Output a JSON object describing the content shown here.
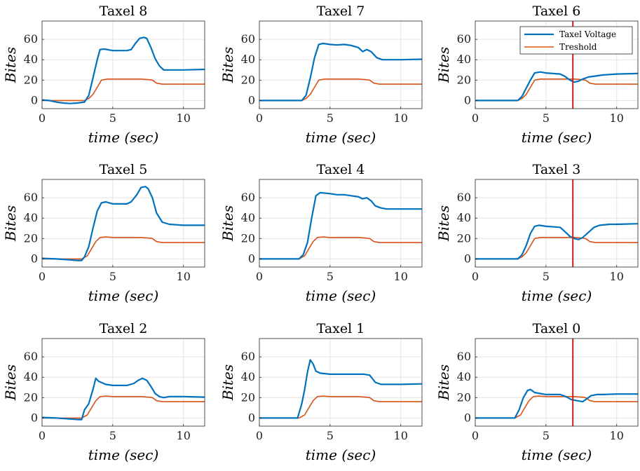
{
  "figure": {
    "legend": {
      "voltage_label": "Taxel Voltage",
      "threshold_label": "Treshold"
    }
  },
  "chart_data": [
    {
      "type": "line",
      "title": "Taxel 8",
      "xlabel": "time (sec)",
      "ylabel": "Bites",
      "xlim": [
        0,
        11.5
      ],
      "ylim": [
        -8,
        78
      ],
      "xticks": [
        0,
        5,
        10
      ],
      "yticks": [
        0,
        20,
        40,
        60
      ],
      "grid": true,
      "series": [
        {
          "name": "Taxel Voltage",
          "color": "#0072BD",
          "x": [
            0,
            0.5,
            1,
            1.5,
            2,
            2.5,
            3,
            3.3,
            3.6,
            3.9,
            4.1,
            4.4,
            5,
            5.5,
            6,
            6.3,
            6.6,
            6.9,
            7.2,
            7.4,
            7.7,
            8,
            8.3,
            8.6,
            9,
            10,
            11.5
          ],
          "y": [
            0.5,
            0,
            -1.5,
            -2.5,
            -3,
            -2.5,
            -1.5,
            5,
            22,
            40,
            50,
            50.5,
            49,
            49,
            49,
            50,
            56,
            61,
            62,
            61,
            52,
            41,
            34,
            30,
            30,
            30,
            30.5
          ]
        },
        {
          "name": "Treshold",
          "color": "#D95319",
          "x": [
            0,
            1,
            2,
            3,
            3.3,
            3.6,
            3.9,
            4.2,
            4.6,
            5,
            6,
            7,
            7.5,
            7.8,
            8.1,
            8.5,
            9,
            10,
            11.5
          ],
          "y": [
            0,
            0,
            0,
            0,
            2,
            6,
            13,
            20,
            21,
            21,
            21,
            21,
            20.5,
            20,
            17,
            16,
            16,
            16,
            16
          ]
        }
      ]
    },
    {
      "type": "line",
      "title": "Taxel 7",
      "xlabel": "time (sec)",
      "ylabel": "Bites",
      "xlim": [
        0,
        11.5
      ],
      "ylim": [
        -8,
        78
      ],
      "xticks": [
        0,
        5,
        10
      ],
      "yticks": [
        0,
        20,
        40,
        60
      ],
      "grid": true,
      "series": [
        {
          "name": "Taxel Voltage",
          "color": "#0072BD",
          "x": [
            0,
            1,
            2,
            3,
            3.3,
            3.6,
            3.9,
            4.2,
            4.5,
            5,
            5.5,
            6,
            6.5,
            7,
            7.3,
            7.6,
            7.9,
            8.3,
            8.7,
            9,
            10,
            11.5
          ],
          "y": [
            0,
            0,
            0,
            0,
            5,
            22,
            42,
            55,
            56,
            55,
            54.5,
            55,
            54,
            52,
            48,
            50,
            48,
            42,
            40,
            40,
            40,
            40.5
          ]
        },
        {
          "name": "Treshold",
          "color": "#D95319",
          "x": [
            0,
            1,
            2,
            3,
            3.3,
            3.6,
            3.9,
            4.2,
            4.6,
            5,
            6,
            7,
            7.5,
            7.8,
            8.1,
            8.5,
            9,
            10,
            11.5
          ],
          "y": [
            0,
            0,
            0,
            0,
            2,
            6,
            13,
            20,
            21,
            21,
            21,
            21,
            20.5,
            20,
            17,
            16,
            16,
            16,
            16
          ]
        }
      ]
    },
    {
      "type": "line",
      "title": "Taxel 6",
      "xlabel": "time (sec)",
      "ylabel": "Bites",
      "xlim": [
        0,
        11.5
      ],
      "ylim": [
        -8,
        78
      ],
      "xticks": [
        0,
        5,
        10
      ],
      "yticks": [
        0,
        20,
        40,
        60
      ],
      "grid": true,
      "vline_x": 6.9,
      "legend": true,
      "series": [
        {
          "name": "Taxel Voltage",
          "color": "#0072BD",
          "x": [
            0,
            1,
            2,
            3,
            3.3,
            3.6,
            3.9,
            4.2,
            4.6,
            5,
            6,
            6.3,
            6.7,
            7,
            7.3,
            7.6,
            8,
            8.5,
            9,
            10,
            11.5
          ],
          "y": [
            0,
            0,
            0,
            0,
            4,
            12,
            20,
            27,
            28,
            27,
            26,
            24,
            20,
            18,
            19,
            21,
            23,
            24,
            25,
            26,
            26.5
          ]
        },
        {
          "name": "Treshold",
          "color": "#D95319",
          "x": [
            0,
            1,
            2,
            3,
            3.3,
            3.6,
            3.9,
            4.2,
            4.6,
            5,
            6,
            7,
            7.5,
            7.8,
            8.1,
            8.5,
            9,
            10,
            11.5
          ],
          "y": [
            0,
            0,
            0,
            0,
            2,
            6,
            13,
            20,
            21,
            21,
            21,
            21,
            20.5,
            20,
            17,
            16,
            16,
            16,
            16
          ]
        }
      ]
    },
    {
      "type": "line",
      "title": "Taxel 5",
      "xlabel": "time (sec)",
      "ylabel": "Bites",
      "xlim": [
        0,
        11.5
      ],
      "ylim": [
        -8,
        78
      ],
      "xticks": [
        0,
        5,
        10
      ],
      "yticks": [
        0,
        20,
        40,
        60
      ],
      "grid": true,
      "series": [
        {
          "name": "Taxel Voltage",
          "color": "#0072BD",
          "x": [
            0,
            1,
            2,
            2.5,
            2.8,
            3,
            3.3,
            3.6,
            3.9,
            4.2,
            4.5,
            5,
            5.5,
            6,
            6.3,
            6.7,
            7,
            7.3,
            7.5,
            7.8,
            8.1,
            8.5,
            9,
            10,
            11.5
          ],
          "y": [
            0.5,
            0,
            -1,
            -1.5,
            -1.5,
            2,
            12,
            30,
            47,
            55,
            56,
            54,
            54,
            54,
            56,
            63,
            70,
            71,
            69,
            60,
            45,
            36,
            34,
            33,
            33
          ]
        },
        {
          "name": "Treshold",
          "color": "#D95319",
          "x": [
            0,
            1,
            2,
            2.8,
            3.2,
            3.5,
            3.8,
            4.1,
            4.5,
            5,
            6,
            7,
            7.5,
            7.8,
            8.1,
            8.5,
            9,
            10,
            11.5
          ],
          "y": [
            0,
            0,
            0,
            0,
            3,
            10,
            17,
            21,
            21.5,
            21,
            21,
            21,
            20.5,
            20,
            17,
            16,
            16,
            16,
            16
          ]
        }
      ]
    },
    {
      "type": "line",
      "title": "Taxel 4",
      "xlabel": "time (sec)",
      "ylabel": "Bites",
      "xlim": [
        0,
        11.5
      ],
      "ylim": [
        -8,
        78
      ],
      "xticks": [
        0,
        5,
        10
      ],
      "yticks": [
        0,
        20,
        40,
        60
      ],
      "grid": true,
      "series": [
        {
          "name": "Taxel Voltage",
          "color": "#0072BD",
          "x": [
            0,
            1,
            2,
            2.8,
            3.1,
            3.4,
            3.7,
            4,
            4.3,
            5,
            5.5,
            6,
            6.5,
            7,
            7.3,
            7.6,
            7.9,
            8.2,
            8.6,
            9,
            10,
            11.5
          ],
          "y": [
            0,
            0,
            0,
            0,
            4,
            16,
            40,
            62,
            65,
            64,
            63,
            63,
            62,
            61,
            59,
            60,
            57,
            52,
            50,
            49,
            49,
            49
          ]
        },
        {
          "name": "Treshold",
          "color": "#D95319",
          "x": [
            0,
            1,
            2,
            2.8,
            3.2,
            3.5,
            3.8,
            4.1,
            4.5,
            5,
            6,
            7,
            7.5,
            7.8,
            8.1,
            8.5,
            9,
            10,
            11.5
          ],
          "y": [
            0,
            0,
            0,
            0,
            3,
            10,
            17,
            21,
            21.5,
            21,
            21,
            21,
            20.5,
            20,
            17,
            16,
            16,
            16,
            16
          ]
        }
      ]
    },
    {
      "type": "line",
      "title": "Taxel 3",
      "xlabel": "time (sec)",
      "ylabel": "Bites",
      "xlim": [
        0,
        11.5
      ],
      "ylim": [
        -8,
        78
      ],
      "xticks": [
        0,
        5,
        10
      ],
      "yticks": [
        0,
        20,
        40,
        60
      ],
      "grid": true,
      "vline_x": 6.9,
      "series": [
        {
          "name": "Taxel Voltage",
          "color": "#0072BD",
          "x": [
            0,
            1,
            2,
            3,
            3.3,
            3.6,
            3.9,
            4.2,
            4.5,
            5,
            6,
            6.4,
            6.7,
            7,
            7.3,
            7.6,
            8,
            8.4,
            8.8,
            9.5,
            10,
            11.5
          ],
          "y": [
            0,
            0,
            0,
            0,
            4,
            13,
            25,
            32,
            33,
            32,
            31,
            26,
            22,
            20,
            19,
            21,
            26,
            31,
            33,
            34,
            34,
            34.5
          ]
        },
        {
          "name": "Treshold",
          "color": "#D95319",
          "x": [
            0,
            1,
            2,
            3,
            3.3,
            3.6,
            3.9,
            4.2,
            4.6,
            5,
            6,
            7,
            7.5,
            7.8,
            8.1,
            8.5,
            9,
            10,
            11.5
          ],
          "y": [
            0,
            0,
            0,
            0,
            2,
            6,
            13,
            20,
            21,
            21,
            21,
            21,
            20.5,
            20,
            17,
            16,
            16,
            16,
            16
          ]
        }
      ]
    },
    {
      "type": "line",
      "title": "Taxel 2",
      "xlabel": "time (sec)",
      "ylabel": "Bites",
      "xlim": [
        0,
        11.5
      ],
      "ylim": [
        -8,
        78
      ],
      "xticks": [
        0,
        5,
        10
      ],
      "yticks": [
        0,
        20,
        40,
        60
      ],
      "grid": true,
      "series": [
        {
          "name": "Taxel Voltage",
          "color": "#0072BD",
          "x": [
            0,
            1,
            2,
            2.6,
            2.8,
            3,
            3.3,
            3.6,
            3.8,
            4,
            4.5,
            5,
            5.5,
            6,
            6.5,
            6.8,
            7.1,
            7.4,
            7.7,
            8,
            8.3,
            8.6,
            9,
            10,
            11.5
          ],
          "y": [
            0.5,
            0,
            -1,
            -1.5,
            -1.5,
            8,
            14,
            28,
            39,
            36,
            33,
            32,
            32,
            32,
            34,
            37,
            39,
            37,
            31,
            24,
            21,
            20,
            21,
            21,
            20.5
          ]
        },
        {
          "name": "Treshold",
          "color": "#D95319",
          "x": [
            0,
            1,
            2,
            2.8,
            3.2,
            3.5,
            3.8,
            4.1,
            4.5,
            5,
            6,
            7,
            7.5,
            7.8,
            8.1,
            8.5,
            9,
            10,
            11.5
          ],
          "y": [
            0,
            0,
            0,
            0,
            3,
            10,
            17,
            21,
            21.5,
            21,
            21,
            21,
            20.5,
            20,
            17,
            16,
            16,
            16,
            16
          ]
        }
      ]
    },
    {
      "type": "line",
      "title": "Taxel 1",
      "xlabel": "time (sec)",
      "ylabel": "Bites",
      "xlim": [
        0,
        11.5
      ],
      "ylim": [
        -8,
        78
      ],
      "xticks": [
        0,
        5,
        10
      ],
      "yticks": [
        0,
        20,
        40,
        60
      ],
      "grid": true,
      "series": [
        {
          "name": "Taxel Voltage",
          "color": "#0072BD",
          "x": [
            0,
            1,
            2,
            2.7,
            3,
            3.2,
            3.4,
            3.6,
            3.8,
            4,
            4.3,
            5,
            6,
            7,
            7.4,
            7.8,
            8.2,
            8.6,
            9,
            10,
            11.5
          ],
          "y": [
            0,
            0,
            0,
            0,
            14,
            28,
            45,
            57,
            53,
            46,
            44,
            43,
            43,
            43,
            43,
            42,
            35,
            33,
            33,
            33,
            33.5
          ]
        },
        {
          "name": "Treshold",
          "color": "#D95319",
          "x": [
            0,
            1,
            2,
            2.8,
            3.2,
            3.5,
            3.8,
            4.1,
            4.5,
            5,
            6,
            7,
            7.5,
            7.8,
            8.1,
            8.5,
            9,
            10,
            11.5
          ],
          "y": [
            0,
            0,
            0,
            0,
            3,
            10,
            17,
            21,
            21.5,
            21,
            21,
            21,
            20.5,
            20,
            17,
            16,
            16,
            16,
            16
          ]
        }
      ]
    },
    {
      "type": "line",
      "title": "Taxel 0",
      "xlabel": "time (sec)",
      "ylabel": "Bites",
      "xlim": [
        0,
        11.5
      ],
      "ylim": [
        -8,
        78
      ],
      "xticks": [
        0,
        5,
        10
      ],
      "yticks": [
        0,
        20,
        40,
        60
      ],
      "grid": true,
      "vline_x": 6.9,
      "series": [
        {
          "name": "Taxel Voltage",
          "color": "#0072BD",
          "x": [
            0,
            1,
            2,
            2.8,
            3.1,
            3.4,
            3.7,
            3.9,
            4.2,
            4.6,
            5,
            5.5,
            6,
            6.4,
            6.8,
            7.2,
            7.6,
            7.8,
            8.2,
            8.6,
            9,
            10,
            11.5
          ],
          "y": [
            0,
            0,
            0,
            0,
            8,
            20,
            27,
            28,
            25,
            24,
            23,
            23,
            23,
            21,
            18,
            17,
            16,
            18,
            22,
            23,
            23,
            23.5,
            23.5
          ]
        },
        {
          "name": "Treshold",
          "color": "#D95319",
          "x": [
            0,
            1,
            2,
            2.8,
            3.2,
            3.5,
            3.8,
            4.1,
            4.5,
            5,
            6,
            7,
            7.5,
            7.8,
            8.1,
            8.5,
            9,
            10,
            11.5
          ],
          "y": [
            0,
            0,
            0,
            0,
            3,
            10,
            17,
            21,
            21.5,
            21,
            21,
            21,
            20.5,
            20,
            17,
            16,
            16,
            16,
            16
          ]
        }
      ]
    }
  ]
}
